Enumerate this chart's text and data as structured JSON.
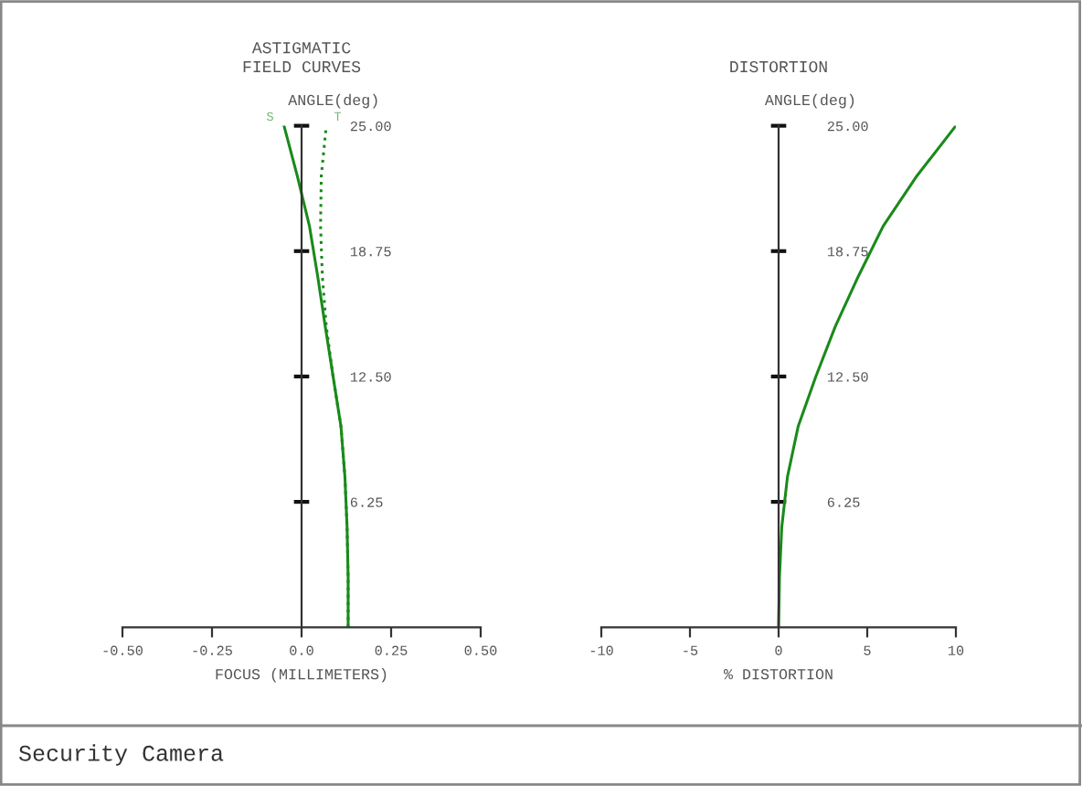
{
  "chart_data": [
    {
      "type": "line",
      "title": "ASTIGMATIC\nFIELD CURVES",
      "xlabel": "FOCUS (MILLIMETERS)",
      "ylabel": "ANGLE(deg)",
      "xlim": [
        -0.5,
        0.5
      ],
      "xticks": [
        {
          "value": -0.5,
          "label": "-0.50"
        },
        {
          "value": -0.25,
          "label": "-0.25"
        },
        {
          "value": 0,
          "label": "0.0"
        },
        {
          "value": 0.25,
          "label": "0.25"
        },
        {
          "value": 0.5,
          "label": "0.50"
        }
      ],
      "ylim": [
        0,
        25
      ],
      "yticks": [
        {
          "value": 6.25,
          "label": "6.25"
        },
        {
          "value": 12.5,
          "label": "12.50"
        },
        {
          "value": 18.75,
          "label": "18.75"
        },
        {
          "value": 25,
          "label": "25.00"
        }
      ],
      "annotations": [
        "Security Camera"
      ],
      "series": [
        {
          "name": "S",
          "color": "#1a8a1a",
          "line_style": "solid",
          "x": [
            0.13,
            0.13,
            0.127,
            0.121,
            0.11,
            0.088,
            0.066,
            0.045,
            0.022,
            -0.012,
            -0.049
          ],
          "values": [
            0,
            2.5,
            5,
            7.5,
            10,
            12.5,
            15,
            17.5,
            20,
            22.5,
            25
          ]
        },
        {
          "name": "T",
          "color": "#1a8a1a",
          "line_style": "dotted",
          "x": [
            0.13,
            0.13,
            0.127,
            0.121,
            0.11,
            0.088,
            0.069,
            0.058,
            0.053,
            0.055,
            0.069
          ],
          "values": [
            0,
            2.5,
            5,
            7.5,
            10,
            12.5,
            15,
            17.5,
            20,
            22.5,
            25
          ]
        }
      ]
    },
    {
      "type": "line",
      "title": "DISTORTION",
      "xlabel": "% DISTORTION",
      "ylabel": "ANGLE(deg)",
      "xlim": [
        -10,
        10
      ],
      "xticks": [
        -10,
        -5,
        0,
        5,
        10
      ],
      "ylim": [
        0,
        25
      ],
      "yticks": [
        {
          "value": 6.25,
          "label": "6.25"
        },
        {
          "value": 12.5,
          "label": "12.50"
        },
        {
          "value": 18.75,
          "label": "18.75"
        },
        {
          "value": 25,
          "label": "25.00"
        }
      ],
      "series": [
        {
          "color": "#1a8a1a",
          "line_style": "solid",
          "x": [
            0,
            0.05,
            0.18,
            0.5,
            1.1,
            2.1,
            3.2,
            4.5,
            5.9,
            7.8,
            10
          ],
          "values": [
            0,
            2.5,
            5,
            7.5,
            10,
            12.5,
            15,
            17.5,
            20,
            22.5,
            25
          ]
        }
      ]
    }
  ]
}
